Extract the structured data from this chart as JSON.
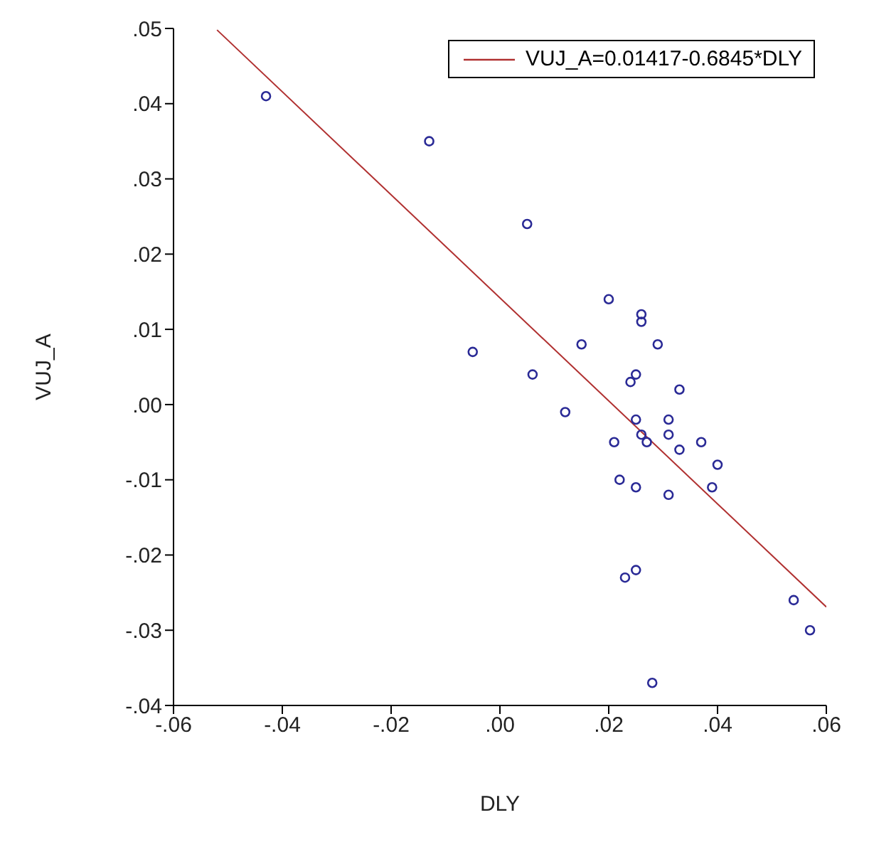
{
  "chart_data": {
    "type": "scatter",
    "xlabel": "DLY",
    "ylabel": "VUJ_A",
    "xlim": [
      -0.06,
      0.06
    ],
    "ylim": [
      -0.04,
      0.05
    ],
    "xticks": [
      {
        "value": -0.06,
        "label": "-.06"
      },
      {
        "value": -0.04,
        "label": "-.04"
      },
      {
        "value": -0.02,
        "label": "-.02"
      },
      {
        "value": 0,
        "label": ".00"
      },
      {
        "value": 0.02,
        "label": ".02"
      },
      {
        "value": 0.04,
        "label": ".04"
      },
      {
        "value": 0.06,
        "label": ".06"
      }
    ],
    "yticks": [
      {
        "value": -0.04,
        "label": "-.04"
      },
      {
        "value": -0.03,
        "label": "-.03"
      },
      {
        "value": -0.02,
        "label": "-.02"
      },
      {
        "value": -0.01,
        "label": "-.01"
      },
      {
        "value": 0,
        "label": ".00"
      },
      {
        "value": 0.01,
        "label": ".01"
      },
      {
        "value": 0.02,
        "label": ".02"
      },
      {
        "value": 0.03,
        "label": ".03"
      },
      {
        "value": 0.04,
        "label": ".04"
      },
      {
        "value": 0.05,
        "label": ".05"
      }
    ],
    "grid": false,
    "legend": "top right",
    "series": [
      {
        "type": "scatter",
        "color": "#2a2a96",
        "marker": "circle",
        "x": [
          -0.043,
          -0.013,
          0.005,
          0.02,
          0.026,
          0.026,
          0.015,
          0.029,
          -0.005,
          0.006,
          0.025,
          0.024,
          0.033,
          0.012,
          0.025,
          0.031,
          0.026,
          0.031,
          0.027,
          0.021,
          0.033,
          0.037,
          0.04,
          0.022,
          0.025,
          0.039,
          0.031,
          0.023,
          0.025,
          0.054,
          0.057,
          0.028
        ],
        "values": [
          0.041,
          0.035,
          0.024,
          0.014,
          0.012,
          0.011,
          0.008,
          0.008,
          0.007,
          0.004,
          0.004,
          0.003,
          0.002,
          -0.001,
          -0.002,
          -0.002,
          -0.004,
          -0.004,
          -0.005,
          -0.005,
          -0.006,
          -0.005,
          -0.008,
          -0.01,
          -0.011,
          -0.011,
          -0.012,
          -0.023,
          -0.022,
          -0.026,
          -0.03,
          -0.037
        ]
      },
      {
        "type": "line",
        "name": "VUJ_A=0.01417-0.6845*DLY",
        "color": "#b03030",
        "line_style": "solid",
        "x": [
          -0.052,
          0.06
        ],
        "values": [
          0.0498,
          -0.0269
        ]
      }
    ]
  }
}
